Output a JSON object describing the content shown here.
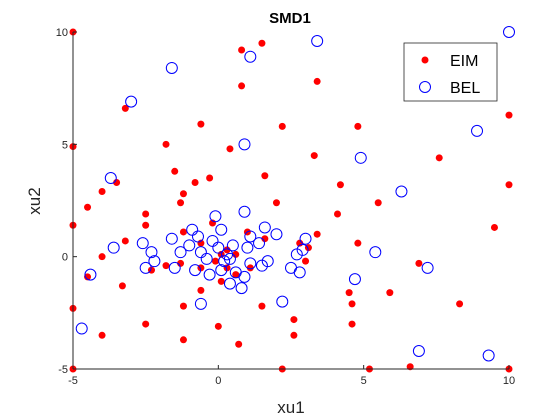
{
  "chart_data": {
    "type": "scatter",
    "title": "SMD1",
    "xlabel": "xu1",
    "ylabel": "xu2",
    "xlim": [
      -5,
      10
    ],
    "ylim": [
      -5,
      10
    ],
    "xticks": [
      "-5",
      "0",
      "5",
      "10"
    ],
    "yticks": [
      "-5",
      "0",
      "5",
      "10"
    ],
    "grid": false,
    "legend_position": "top-right",
    "series": [
      {
        "name": "EIM",
        "marker": "filled-dot",
        "color": "#ff0000",
        "points": [
          [
            -5,
            10
          ],
          [
            -5,
            4.9
          ],
          [
            -5,
            1.4
          ],
          [
            -5,
            -2.3
          ],
          [
            -5,
            -5
          ],
          [
            -4.5,
            2.2
          ],
          [
            -4.5,
            -0.9
          ],
          [
            -4,
            2.9
          ],
          [
            -4,
            0
          ],
          [
            -4,
            -3.5
          ],
          [
            -3.5,
            3.3
          ],
          [
            -3.2,
            6.6
          ],
          [
            -3.2,
            0.7
          ],
          [
            -3.3,
            -1.3
          ],
          [
            -2.5,
            1.9
          ],
          [
            -2.5,
            1.4
          ],
          [
            -2.3,
            -0.6
          ],
          [
            -2.5,
            -3
          ],
          [
            -1.8,
            5
          ],
          [
            -1.8,
            -0.4
          ],
          [
            -1.5,
            3.8
          ],
          [
            -1.2,
            2.8
          ],
          [
            -1.3,
            2.4
          ],
          [
            -1.2,
            1.1
          ],
          [
            -1.3,
            -0.3
          ],
          [
            -1.2,
            -2.2
          ],
          [
            -1.2,
            -3.7
          ],
          [
            -0.8,
            3.3
          ],
          [
            -0.6,
            0.6
          ],
          [
            -0.6,
            -0.5
          ],
          [
            -0.6,
            -1.5
          ],
          [
            -0.6,
            5.9
          ],
          [
            -0.3,
            3.5
          ],
          [
            -0.2,
            1.5
          ],
          [
            -0.1,
            -0.2
          ],
          [
            0,
            -3.1
          ],
          [
            0.1,
            -1.1
          ],
          [
            0.1,
            0.1
          ],
          [
            0.3,
            0.3
          ],
          [
            0.3,
            -0.5
          ],
          [
            0.4,
            4.8
          ],
          [
            0.6,
            0.1
          ],
          [
            0.6,
            -0.8
          ],
          [
            0.8,
            9.2
          ],
          [
            0.8,
            7.6
          ],
          [
            0.7,
            -3.9
          ],
          [
            1,
            1.1
          ],
          [
            1.1,
            -0.5
          ],
          [
            1.5,
            9.5
          ],
          [
            1.5,
            -2.2
          ],
          [
            1.6,
            3.6
          ],
          [
            1.6,
            0.8
          ],
          [
            2,
            2.4
          ],
          [
            2.2,
            5.8
          ],
          [
            2.2,
            -5
          ],
          [
            2.6,
            -2.8
          ],
          [
            2.6,
            -3.5
          ],
          [
            2.8,
            0.6
          ],
          [
            3,
            -0.2
          ],
          [
            3.1,
            0.4
          ],
          [
            3.3,
            4.5
          ],
          [
            3.4,
            7.8
          ],
          [
            3.4,
            1
          ],
          [
            4.1,
            1.9
          ],
          [
            4.2,
            3.2
          ],
          [
            4.5,
            -1.6
          ],
          [
            4.6,
            -2.1
          ],
          [
            4.6,
            -3
          ],
          [
            4.8,
            5.8
          ],
          [
            4.8,
            0.6
          ],
          [
            5.2,
            -5
          ],
          [
            5.5,
            2.4
          ],
          [
            5.9,
            -1.6
          ],
          [
            6.6,
            -4.9
          ],
          [
            6.9,
            -0.3
          ],
          [
            7.6,
            4.4
          ],
          [
            8.3,
            -2.1
          ],
          [
            9.5,
            1.3
          ],
          [
            10,
            6.3
          ],
          [
            10,
            3.2
          ],
          [
            10,
            -5
          ]
        ]
      },
      {
        "name": "BEL",
        "marker": "open-circle",
        "color": "#0000ff",
        "points": [
          [
            -4.7,
            -3.2
          ],
          [
            -4.4,
            -0.8
          ],
          [
            -3.7,
            3.5
          ],
          [
            -3.6,
            0.4
          ],
          [
            -3,
            6.9
          ],
          [
            -2.6,
            0.6
          ],
          [
            -2.5,
            -0.5
          ],
          [
            -2.3,
            0.2
          ],
          [
            -2.2,
            -0.2
          ],
          [
            -1.6,
            8.4
          ],
          [
            -1.6,
            0.8
          ],
          [
            -1.5,
            -0.5
          ],
          [
            -1.3,
            0.2
          ],
          [
            -1,
            0.5
          ],
          [
            -0.9,
            1.2
          ],
          [
            -0.8,
            -0.6
          ],
          [
            -0.7,
            0.9
          ],
          [
            -0.6,
            0.2
          ],
          [
            -0.6,
            -2.1
          ],
          [
            -0.4,
            -0.1
          ],
          [
            -0.3,
            -0.8
          ],
          [
            -0.2,
            0.7
          ],
          [
            -0.1,
            1.8
          ],
          [
            0,
            0.4
          ],
          [
            0.1,
            -0.6
          ],
          [
            0.1,
            1.2
          ],
          [
            0.2,
            -0.2
          ],
          [
            0.3,
            0.1
          ],
          [
            0.4,
            -0.1
          ],
          [
            0.4,
            -1.2
          ],
          [
            0.5,
            0.5
          ],
          [
            0.6,
            -0.7
          ],
          [
            0.8,
            -1.4
          ],
          [
            0.9,
            5
          ],
          [
            0.9,
            2
          ],
          [
            0.9,
            -0.9
          ],
          [
            1,
            0.4
          ],
          [
            1.1,
            0.9
          ],
          [
            1.1,
            -0.3
          ],
          [
            1.4,
            0.6
          ],
          [
            1.5,
            -0.4
          ],
          [
            1.6,
            1.3
          ],
          [
            1.7,
            -0.2
          ],
          [
            2,
            1
          ],
          [
            1.1,
            8.9
          ],
          [
            2.2,
            -2
          ],
          [
            2.5,
            -0.5
          ],
          [
            2.7,
            0.1
          ],
          [
            2.8,
            -0.7
          ],
          [
            2.9,
            0.3
          ],
          [
            3,
            0.8
          ],
          [
            3.4,
            9.6
          ],
          [
            4.7,
            -1
          ],
          [
            4.9,
            4.4
          ],
          [
            5.4,
            0.2
          ],
          [
            6.3,
            2.9
          ],
          [
            6.9,
            -4.2
          ],
          [
            7.2,
            -0.5
          ],
          [
            8.9,
            5.6
          ],
          [
            9.3,
            -4.4
          ],
          [
            10,
            10
          ]
        ]
      }
    ]
  }
}
